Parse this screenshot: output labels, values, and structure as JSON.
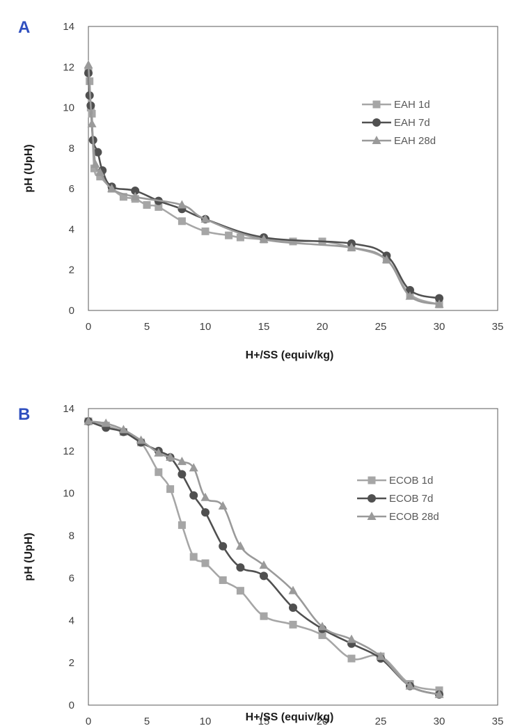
{
  "colors": {
    "panel_letter": "#2f4fbf",
    "plot_border": "#595959",
    "series_1d": "#a6a6a6",
    "series_7d": "#505050",
    "series_28d": "#9a9a9a"
  },
  "chart_data": [
    {
      "type": "line",
      "panel_label": "A",
      "title": "",
      "xlabel": "H+/SS (equiv/kg)",
      "ylabel": "pH (UpH)",
      "xlim": [
        0,
        35
      ],
      "ylim": [
        0,
        14
      ],
      "xticks": [
        0,
        5,
        10,
        15,
        20,
        25,
        30,
        35
      ],
      "yticks": [
        0,
        2,
        4,
        6,
        8,
        10,
        12,
        14
      ],
      "grid": false,
      "legend_position": "right",
      "series": [
        {
          "name": "EAH 1d",
          "marker": "square",
          "color_key": "series_1d",
          "x": [
            0,
            0.1,
            0.2,
            0.3,
            0.5,
            1,
            2,
            3,
            4,
            5,
            6,
            8,
            10,
            12,
            13,
            15,
            17.5,
            20,
            22.5,
            25.5,
            27.5,
            30
          ],
          "y": [
            11.8,
            11.3,
            10.0,
            9.7,
            7.0,
            6.6,
            6.0,
            5.6,
            5.5,
            5.2,
            5.1,
            4.4,
            3.9,
            3.7,
            3.6,
            3.5,
            3.4,
            3.4,
            3.1,
            2.5,
            0.8,
            0.3
          ]
        },
        {
          "name": "EAH 7d",
          "marker": "circle",
          "color_key": "series_7d",
          "x": [
            0,
            0.1,
            0.2,
            0.4,
            0.8,
            1.2,
            2,
            4,
            6,
            8,
            10,
            15,
            22.5,
            25.5,
            27.5,
            30
          ],
          "y": [
            11.7,
            10.6,
            10.1,
            8.4,
            7.8,
            6.9,
            6.1,
            5.9,
            5.4,
            5.0,
            4.5,
            3.6,
            3.3,
            2.7,
            1.0,
            0.6
          ]
        },
        {
          "name": "EAH 28d",
          "marker": "triangle",
          "color_key": "series_28d",
          "x": [
            0,
            0.3,
            0.6,
            1,
            2,
            4,
            8,
            10,
            15,
            22.5,
            25.5,
            27.5,
            30
          ],
          "y": [
            12.1,
            9.2,
            7.2,
            6.8,
            6.0,
            5.6,
            5.2,
            4.5,
            3.5,
            3.1,
            2.5,
            0.7,
            0.3
          ]
        }
      ]
    },
    {
      "type": "line",
      "panel_label": "B",
      "title": "",
      "xlabel": "H+/SS (equiv/kg)",
      "ylabel": "pH (UpH)",
      "xlim": [
        0,
        35
      ],
      "ylim": [
        0,
        14
      ],
      "xticks": [
        0,
        5,
        10,
        15,
        20,
        25,
        30,
        35
      ],
      "yticks": [
        0,
        2,
        4,
        6,
        8,
        10,
        12,
        14
      ],
      "grid": false,
      "legend_position": "right",
      "series": [
        {
          "name": "ECOB 1d",
          "marker": "square",
          "color_key": "series_1d",
          "x": [
            0,
            1.5,
            3,
            4.5,
            6,
            7,
            8,
            9,
            10,
            11.5,
            13,
            15,
            17.5,
            20,
            22.5,
            25,
            27.5,
            30
          ],
          "y": [
            13.4,
            13.2,
            12.9,
            12.4,
            11.0,
            10.2,
            8.5,
            7.0,
            6.7,
            5.9,
            5.4,
            4.2,
            3.8,
            3.3,
            2.2,
            2.3,
            1.0,
            0.7
          ]
        },
        {
          "name": "ECOB 7d",
          "marker": "circle",
          "color_key": "series_7d",
          "x": [
            0,
            1.5,
            3,
            4.5,
            6,
            7,
            8,
            9,
            10,
            11.5,
            13,
            15,
            17.5,
            20,
            22.5,
            25,
            27.5,
            30
          ],
          "y": [
            13.4,
            13.1,
            12.9,
            12.4,
            12.0,
            11.7,
            10.9,
            9.9,
            9.1,
            7.5,
            6.5,
            6.1,
            4.6,
            3.6,
            2.9,
            2.2,
            0.9,
            0.5
          ]
        },
        {
          "name": "ECOB 28d",
          "marker": "triangle",
          "color_key": "series_28d",
          "x": [
            0,
            1.5,
            3,
            4.5,
            6,
            7,
            8,
            9,
            10,
            11.5,
            13,
            15,
            17.5,
            20,
            22.5,
            25,
            27.5,
            30
          ],
          "y": [
            13.4,
            13.3,
            13.0,
            12.5,
            11.9,
            11.7,
            11.5,
            11.2,
            9.8,
            9.4,
            7.5,
            6.6,
            5.4,
            3.7,
            3.1,
            2.3,
            0.9,
            0.5
          ]
        }
      ]
    }
  ]
}
